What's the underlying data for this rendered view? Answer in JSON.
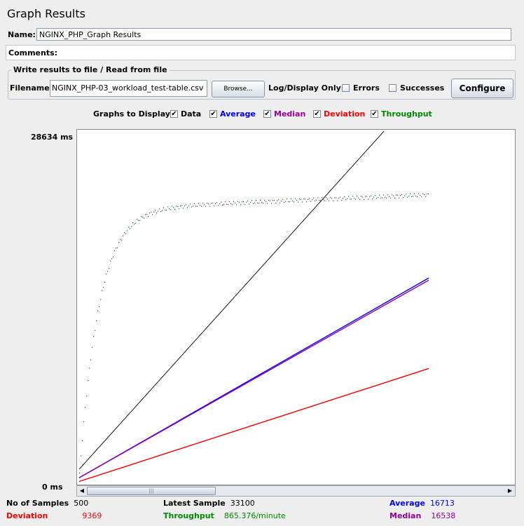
{
  "window": {
    "title": "Graph Results"
  },
  "name_field": {
    "label": "Name:",
    "value": "NGINX_PHP_Graph Results"
  },
  "comments": {
    "label": "Comments:"
  },
  "file_panel": {
    "legend": "Write results to file / Read from file",
    "filename_label": "Filename",
    "filename_value": "NGINX_PHP-03_workload_test-table.csv",
    "browse_label": "Browse...",
    "log_display_label": "Log/Display Only:",
    "errors_label": "Errors",
    "successes_label": "Successes",
    "configure_label": "Configure"
  },
  "graphs_to_display": {
    "label": "Graphs to Display",
    "items": [
      {
        "label": "Data",
        "color": "#000000",
        "checked": true
      },
      {
        "label": "Average",
        "color": "#0000ff",
        "checked": true
      },
      {
        "label": "Median",
        "color": "#990099",
        "checked": true
      },
      {
        "label": "Deviation",
        "color": "#ff0000",
        "checked": true
      },
      {
        "label": "Throughput",
        "color": "#008800",
        "checked": true
      }
    ]
  },
  "chart_data": {
    "type": "line",
    "ylabel_max": "28634  ms",
    "ylabel_min": "0 ms",
    "ylim": [
      0,
      28634
    ],
    "samples": 500,
    "series": [
      {
        "name": "Data",
        "color": "#000000",
        "start": 1200,
        "end": 28634,
        "end_sample": 435,
        "style": "dots"
      },
      {
        "name": "Average",
        "color": "#0000ff",
        "start": 500,
        "end": 16713,
        "end_sample": 500,
        "style": "line"
      },
      {
        "name": "Median",
        "color": "#990099",
        "start": 500,
        "end": 16538,
        "end_sample": 500,
        "style": "line"
      },
      {
        "name": "Deviation",
        "color": "#ff0000",
        "start": 200,
        "end": 9369,
        "end_sample": 500,
        "style": "line"
      },
      {
        "name": "Throughput",
        "color": "#008800",
        "plateau": 22300,
        "style": "dots"
      }
    ]
  },
  "stats": {
    "samples": {
      "label": "No of Samples",
      "value": "500"
    },
    "latest": {
      "label": "Latest Sample",
      "value": "33100"
    },
    "average": {
      "label": "Average",
      "value": "16713"
    },
    "deviation": {
      "label": "Deviation",
      "value": "9369"
    },
    "throughput": {
      "label": "Throughput",
      "value": "865.376/minute"
    },
    "median": {
      "label": "Median",
      "value": "16538"
    }
  }
}
